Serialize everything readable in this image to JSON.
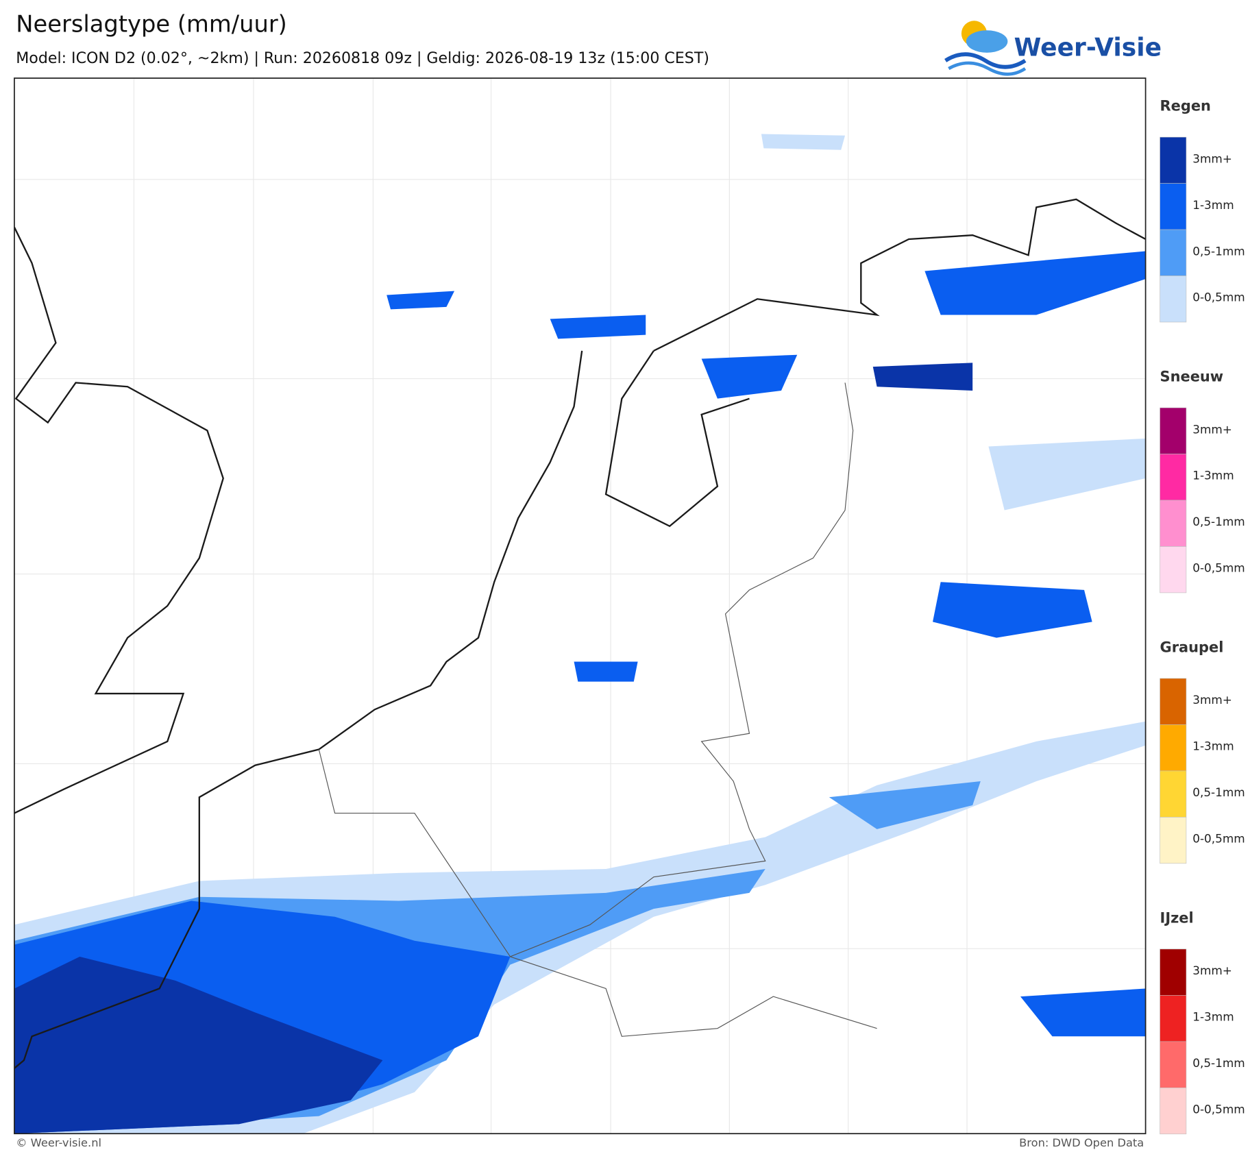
{
  "header": {
    "title": "Neerslagtype (mm/uur)",
    "subtitle": "Model: ICON D2 (0.02°, ~2km)  |  Run: 20260818 09z  |  Geldig: 2026-08-19 13z (15:00 CEST)"
  },
  "logo": {
    "text": "Weer-Visie"
  },
  "legend": [
    {
      "title": "Regen",
      "items": [
        {
          "label": "3mm+",
          "color": "#0a34a8"
        },
        {
          "label": "1-3mm",
          "color": "#0a5ef0"
        },
        {
          "label": "0,5-1mm",
          "color": "#4f9cf6"
        },
        {
          "label": "0-0,5mm",
          "color": "#c9e0fb"
        }
      ]
    },
    {
      "title": "Sneeuw",
      "items": [
        {
          "label": "3mm+",
          "color": "#a3006b"
        },
        {
          "label": "1-3mm",
          "color": "#ff2aa3"
        },
        {
          "label": "0,5-1mm",
          "color": "#ff8fcf"
        },
        {
          "label": "0-0,5mm",
          "color": "#ffd8ee"
        }
      ]
    },
    {
      "title": "Graupel",
      "items": [
        {
          "label": "3mm+",
          "color": "#d96400"
        },
        {
          "label": "1-3mm",
          "color": "#ffaa00"
        },
        {
          "label": "0,5-1mm",
          "color": "#ffd633"
        },
        {
          "label": "0-0,5mm",
          "color": "#fff3c6"
        }
      ]
    },
    {
      "title": "IJzel",
      "items": [
        {
          "label": "3mm+",
          "color": "#a00000"
        },
        {
          "label": "1-3mm",
          "color": "#ee2222"
        },
        {
          "label": "0,5-1mm",
          "color": "#ff6a6a"
        },
        {
          "label": "0-0,5mm",
          "color": "#ffd0d0"
        }
      ]
    }
  ],
  "footer": {
    "left": "© Weer-visie.nl",
    "right": "Bron: DWD Open Data"
  }
}
